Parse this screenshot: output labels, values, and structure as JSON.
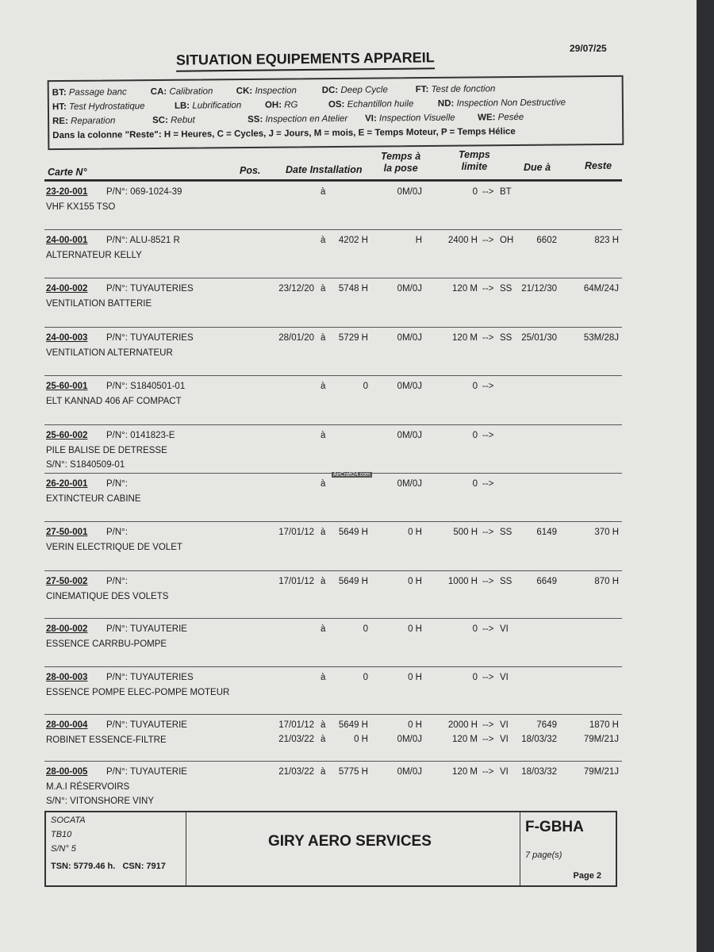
{
  "header": {
    "title": "SITUATION EQUIPEMENTS APPAREIL",
    "date": "29/07/25"
  },
  "legend": {
    "items": [
      {
        "code": "BT:",
        "label": "Passage banc"
      },
      {
        "code": "CA:",
        "label": "Calibration"
      },
      {
        "code": "CK:",
        "label": "Inspection"
      },
      {
        "code": "DC:",
        "label": "Deep Cycle"
      },
      {
        "code": "FT:",
        "label": "Test  de fonction"
      },
      {
        "code": "HT:",
        "label": "Test Hydrostatique"
      },
      {
        "code": "LB:",
        "label": "Lubrification"
      },
      {
        "code": "OH:",
        "label": "RG"
      },
      {
        "code": "OS:",
        "label": "Echantillon huile"
      },
      {
        "code": "ND:",
        "label": "Inspection Non Destructive"
      },
      {
        "code": "RE:",
        "label": "Reparation"
      },
      {
        "code": "SC:",
        "label": "Rebut"
      },
      {
        "code": "SS:",
        "label": "Inspection en Atelier"
      },
      {
        "code": "VI:",
        "label": "Inspection Visuelle"
      },
      {
        "code": "WE:",
        "label": "Pesée"
      }
    ],
    "note": "Dans la colonne \"Reste\": H = Heures, C = Cycles, J = Jours, M = mois, E = Temps Moteur, P = Temps Hélice"
  },
  "columns": {
    "carte": "Carte N°",
    "pos": "Pos.",
    "date_installation": "Date Installation",
    "temps_pose_1": "Temps à",
    "temps_pose_2": "la pose",
    "temps_limite_1": "Temps",
    "temps_limite_2": "limite",
    "due": "Due à",
    "reste": "Reste"
  },
  "rows": [
    {
      "carte": "23-20-001",
      "pn": "P/N°: 069-1024-39",
      "desc": "VHF  KX155 TSO",
      "entries": [
        {
          "date": "",
          "a": "à",
          "install": "",
          "pose": "0M/0J",
          "limite": "0",
          "arrow": "-->",
          "action": "BT",
          "due": "",
          "reste": ""
        }
      ]
    },
    {
      "carte": "24-00-001",
      "pn": "P/N°: ALU-8521 R",
      "desc": "ALTERNATEUR KELLY",
      "entries": [
        {
          "date": "",
          "a": "à",
          "install": "4202 H",
          "pose": "H",
          "limite": "2400 H",
          "arrow": "-->",
          "action": "OH",
          "due": "6602",
          "reste": "823 H"
        }
      ]
    },
    {
      "carte": "24-00-002",
      "pn": "P/N°: TUYAUTERIES",
      "desc": "VENTILATION BATTERIE",
      "entries": [
        {
          "date": "23/12/20",
          "a": "à",
          "install": "5748 H",
          "pose": "0M/0J",
          "limite": "120 M",
          "arrow": "-->",
          "action": "SS",
          "due": "21/12/30",
          "reste": "64M/24J"
        }
      ]
    },
    {
      "carte": "24-00-003",
      "pn": "P/N°: TUYAUTERIES",
      "desc": "VENTILATION ALTERNATEUR",
      "entries": [
        {
          "date": "28/01/20",
          "a": "à",
          "install": "5729 H",
          "pose": "0M/0J",
          "limite": "120 M",
          "arrow": "-->",
          "action": "SS",
          "due": "25/01/30",
          "reste": "53M/28J"
        }
      ]
    },
    {
      "carte": "25-60-001",
      "pn": "P/N°: S1840501-01",
      "desc": "ELT KANNAD 406 AF COMPACT",
      "entries": [
        {
          "date": "",
          "a": "à",
          "install": "0",
          "pose": "0M/0J",
          "limite": "0",
          "arrow": "-->",
          "action": "",
          "due": "",
          "reste": ""
        }
      ]
    },
    {
      "carte": "25-60-002",
      "pn": "P/N°: 0141823-E",
      "desc": "PILE BALISE DE DETRESSE",
      "sn": "S/N°: S1840509-01",
      "entries": [
        {
          "date": "",
          "a": "à",
          "install": "",
          "pose": "0M/0J",
          "limite": "0",
          "arrow": "-->",
          "action": "",
          "due": "",
          "reste": ""
        }
      ]
    },
    {
      "carte": "26-20-001",
      "pn": "P/N°:",
      "desc": "EXTINCTEUR CABINE",
      "entries": [
        {
          "date": "",
          "a": "à",
          "install": "",
          "pose": "0M/0J",
          "limite": "0",
          "arrow": "-->",
          "action": "",
          "due": "",
          "reste": ""
        }
      ]
    },
    {
      "carte": "27-50-001",
      "pn": "P/N°:",
      "desc": "VERIN ELECTRIQUE DE VOLET",
      "entries": [
        {
          "date": "17/01/12",
          "a": "à",
          "install": "5649 H",
          "pose": "0 H",
          "limite": "500 H",
          "arrow": "-->",
          "action": "SS",
          "due": "6149",
          "reste": "370 H"
        }
      ]
    },
    {
      "carte": "27-50-002",
      "pn": "P/N°:",
      "desc": "CINEMATIQUE DES VOLETS",
      "entries": [
        {
          "date": "17/01/12",
          "a": "à",
          "install": "5649 H",
          "pose": "0 H",
          "limite": "1000 H",
          "arrow": "-->",
          "action": "SS",
          "due": "6649",
          "reste": "870 H"
        }
      ]
    },
    {
      "carte": "28-00-002",
      "pn": "P/N°: TUYAUTERIE",
      "desc": "ESSENCE CARRBU-POMPE",
      "entries": [
        {
          "date": "",
          "a": "à",
          "install": "0",
          "pose": "0 H",
          "limite": "0",
          "arrow": "-->",
          "action": "VI",
          "due": "",
          "reste": ""
        }
      ]
    },
    {
      "carte": "28-00-003",
      "pn": "P/N°: TUYAUTERIES",
      "desc": "ESSENCE POMPE ELEC-POMPE MOTEUR",
      "entries": [
        {
          "date": "",
          "a": "à",
          "install": "0",
          "pose": "0 H",
          "limite": "0",
          "arrow": "-->",
          "action": "VI",
          "due": "",
          "reste": ""
        }
      ]
    },
    {
      "carte": "28-00-004",
      "pn": "P/N°: TUYAUTERIE",
      "desc": "ROBINET ESSENCE-FILTRE",
      "entries": [
        {
          "date": "17/01/12",
          "a": "à",
          "install": "5649 H",
          "pose": "0 H",
          "limite": "2000 H",
          "arrow": "-->",
          "action": "VI",
          "due": "7649",
          "reste": "1870 H"
        },
        {
          "date": "21/03/22",
          "a": "à",
          "install": "0 H",
          "pose": "0M/0J",
          "limite": "120 M",
          "arrow": "-->",
          "action": "VI",
          "due": "18/03/32",
          "reste": "79M/21J"
        }
      ]
    },
    {
      "carte": "28-00-005",
      "pn": "P/N°: TUYAUTERIE",
      "desc": "M.A.I RÉSERVOIRS",
      "sn": "S/N°: VITONSHORE VINY",
      "entries": [
        {
          "date": "21/03/22",
          "a": "à",
          "install": "5775 H",
          "pose": "0M/0J",
          "limite": "120 M",
          "arrow": "-->",
          "action": "VI",
          "due": "18/03/32",
          "reste": "79M/21J"
        }
      ]
    }
  ],
  "watermark": "AirCraft24.com",
  "footer": {
    "maker": "SOCATA",
    "model": "TB10",
    "sn": "S/N° 5",
    "tsn": "TSN: 5779.46 h.   CSN: 7917",
    "company": "GIRY AERO SERVICES",
    "registration": "F-GBHA",
    "pages": "7 page(s)",
    "page": "Page 2"
  }
}
